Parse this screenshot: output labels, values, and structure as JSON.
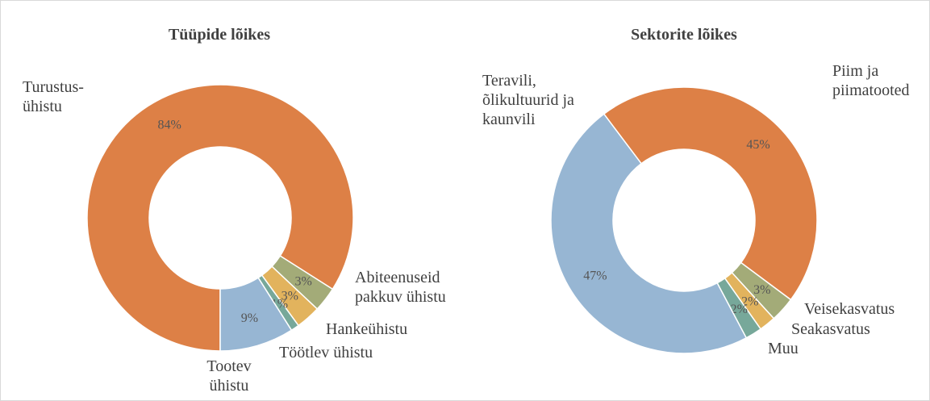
{
  "chart_data": [
    {
      "type": "donut",
      "title": "Tüüpide lõikes",
      "categories": [
        "Turustus-\nühistu",
        "Abiteenuseid\npakkuv ühistu",
        "Hankeühistu",
        "Töötlev ühistu",
        "Tootev\nühistu"
      ],
      "values": [
        84,
        3,
        3,
        1,
        9
      ],
      "value_labels": [
        "84%",
        "3%",
        "3%",
        "1%",
        "9%"
      ],
      "colors": [
        "#dd8046",
        "#a3ab78",
        "#e2b35d",
        "#77a89a",
        "#97b6d3"
      ]
    },
    {
      "type": "donut",
      "title": "Sektorite lõikes",
      "categories": [
        "Piim ja\npiimatooted",
        "Veisekasvatus",
        "Seakasvatus",
        "Muu",
        "Teravili,\nõlikultuurid ja\nkaunvili"
      ],
      "values": [
        45,
        3,
        2,
        2,
        47
      ],
      "value_labels": [
        "45%",
        "3%",
        "2%",
        "2%",
        "47%"
      ],
      "colors": [
        "#dd8046",
        "#a3ab78",
        "#e2b35d",
        "#77a89a",
        "#97b6d3"
      ]
    }
  ]
}
